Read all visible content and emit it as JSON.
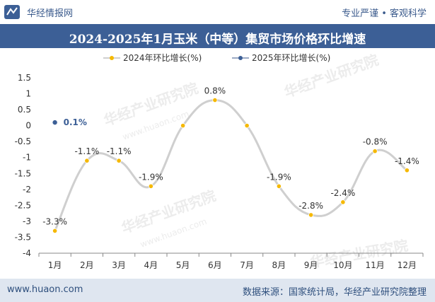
{
  "header": {
    "brand": "华经情报网",
    "tagline": "专业严谨 • 客观科学",
    "title": "2024-2025年1月玉米（中等）集贸市场价格环比增速"
  },
  "footer": {
    "website": "www.huaon.com",
    "source": "数据来源：国家统计局，华经产业研究院整理"
  },
  "watermark": {
    "text": "华经产业研究院",
    "url": "www.huaon.com"
  },
  "colors": {
    "series_2024": "#f5b800",
    "series_2025": "#3c5f96",
    "line_2024": "#cfcfcf",
    "title_bg": "#3c5f96"
  },
  "chart_data": {
    "type": "line",
    "categories": [
      "1月",
      "2月",
      "3月",
      "4月",
      "5月",
      "6月",
      "7月",
      "8月",
      "9月",
      "10月",
      "11月",
      "12月"
    ],
    "series": [
      {
        "name": "2024年环比增长(%)",
        "values": [
          -3.3,
          -1.1,
          -1.1,
          -1.9,
          0,
          0.8,
          0,
          -1.9,
          -2.8,
          -2.4,
          -0.8,
          -1.4
        ],
        "labels": [
          "-3.3%",
          "-1.1%",
          "-1.1%",
          "-1.9%",
          "",
          "0.8%",
          "",
          "-1.9%",
          "-2.8%",
          "-2.4%",
          "-0.8%",
          "-1.4%"
        ]
      },
      {
        "name": "2025年环比增长(%)",
        "values": [
          0.1,
          null,
          null,
          null,
          null,
          null,
          null,
          null,
          null,
          null,
          null,
          null
        ],
        "labels": [
          "0.1%",
          "",
          "",
          "",
          "",
          "",
          "",
          "",
          "",
          "",
          "",
          ""
        ]
      }
    ],
    "ylim": [
      -4,
      1.5
    ],
    "yticks": [
      "1.5",
      "1",
      "0.5",
      "0",
      "-0.5",
      "-1",
      "-1.5",
      "-2",
      "-2.5",
      "-3",
      "-3.5",
      "-4"
    ],
    "legend": "top-center",
    "grid": false
  }
}
